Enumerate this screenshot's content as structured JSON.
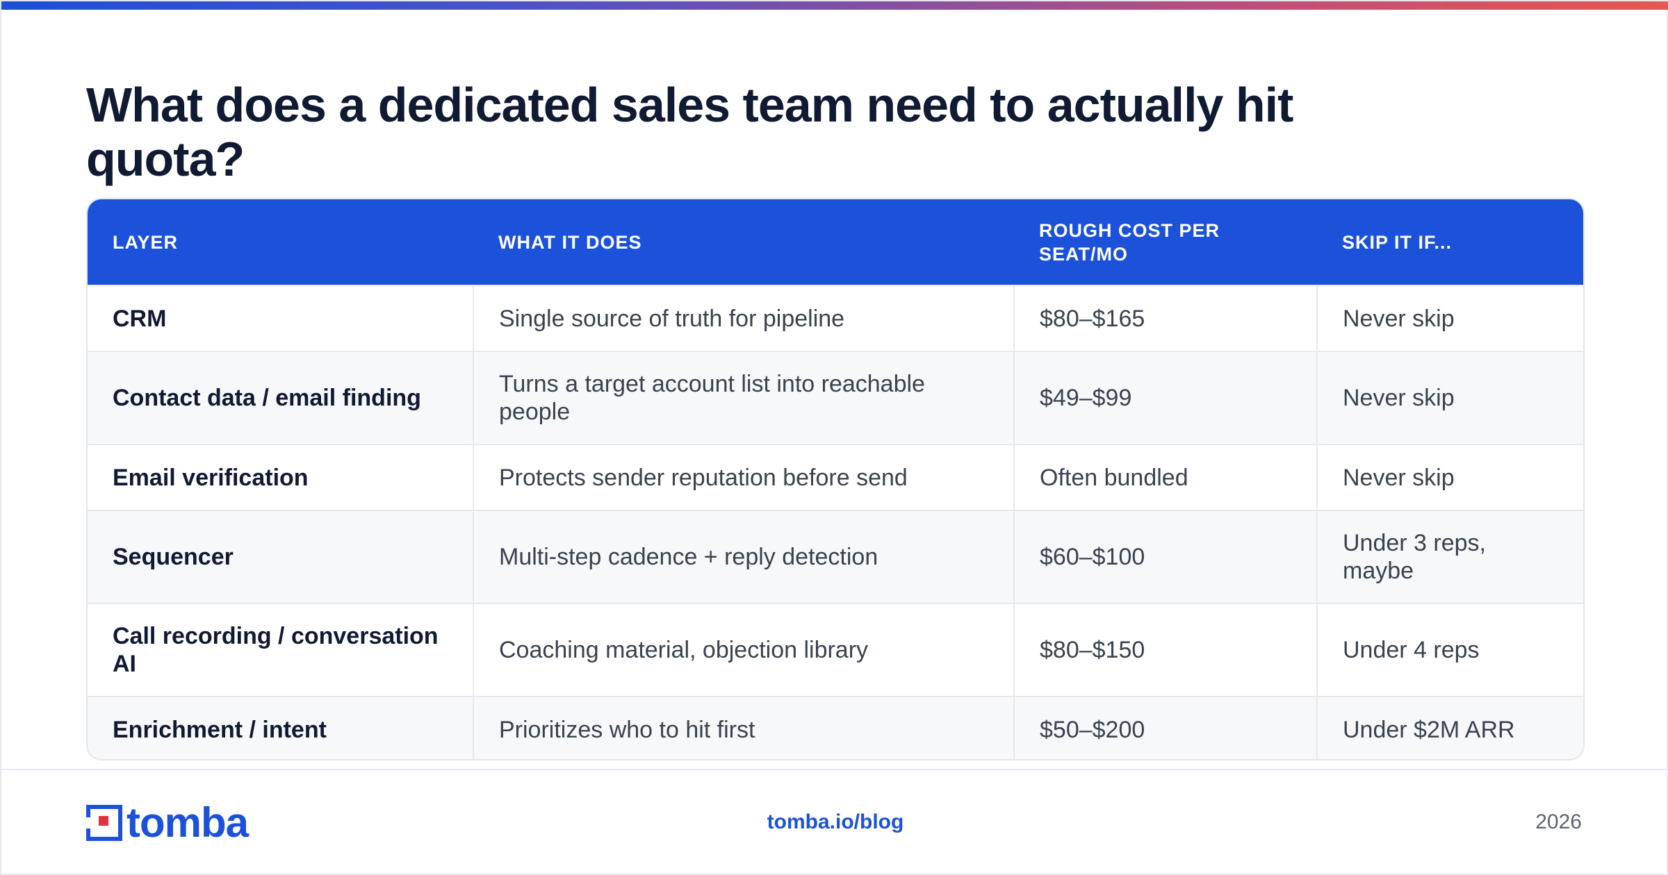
{
  "title": "What does a dedicated sales team need to actually hit quota?",
  "table": {
    "headers": [
      "LAYER",
      "WHAT IT DOES",
      "ROUGH COST PER SEAT/MO",
      "SKIP IT IF..."
    ],
    "rows": [
      [
        "CRM",
        "Single source of truth for pipeline",
        "$80–$165",
        "Never skip"
      ],
      [
        "Contact data / email finding",
        "Turns a target account list into reachable people",
        "$49–$99",
        "Never skip"
      ],
      [
        "Email verification",
        "Protects sender reputation before send",
        "Often bundled",
        "Never skip"
      ],
      [
        "Sequencer",
        "Multi-step cadence + reply detection",
        "$60–$100",
        "Under 3 reps, maybe"
      ],
      [
        "Call recording / conversation AI",
        "Coaching material, objection library",
        "$80–$150",
        "Under 4 reps"
      ],
      [
        "Enrichment / intent",
        "Prioritizes who to hit first",
        "$50–$200",
        "Under $2M ARR"
      ]
    ]
  },
  "footer": {
    "logo_text": "tomba",
    "logo_icon": "tomba-mark-icon",
    "link": "tomba.io/blog",
    "year": "2026"
  },
  "colors": {
    "brand": "#1c52d9",
    "title": "#111a33",
    "body_text": "#39424f",
    "row_alt": "#f7f8fa",
    "logo_accent": "#e0323a"
  }
}
